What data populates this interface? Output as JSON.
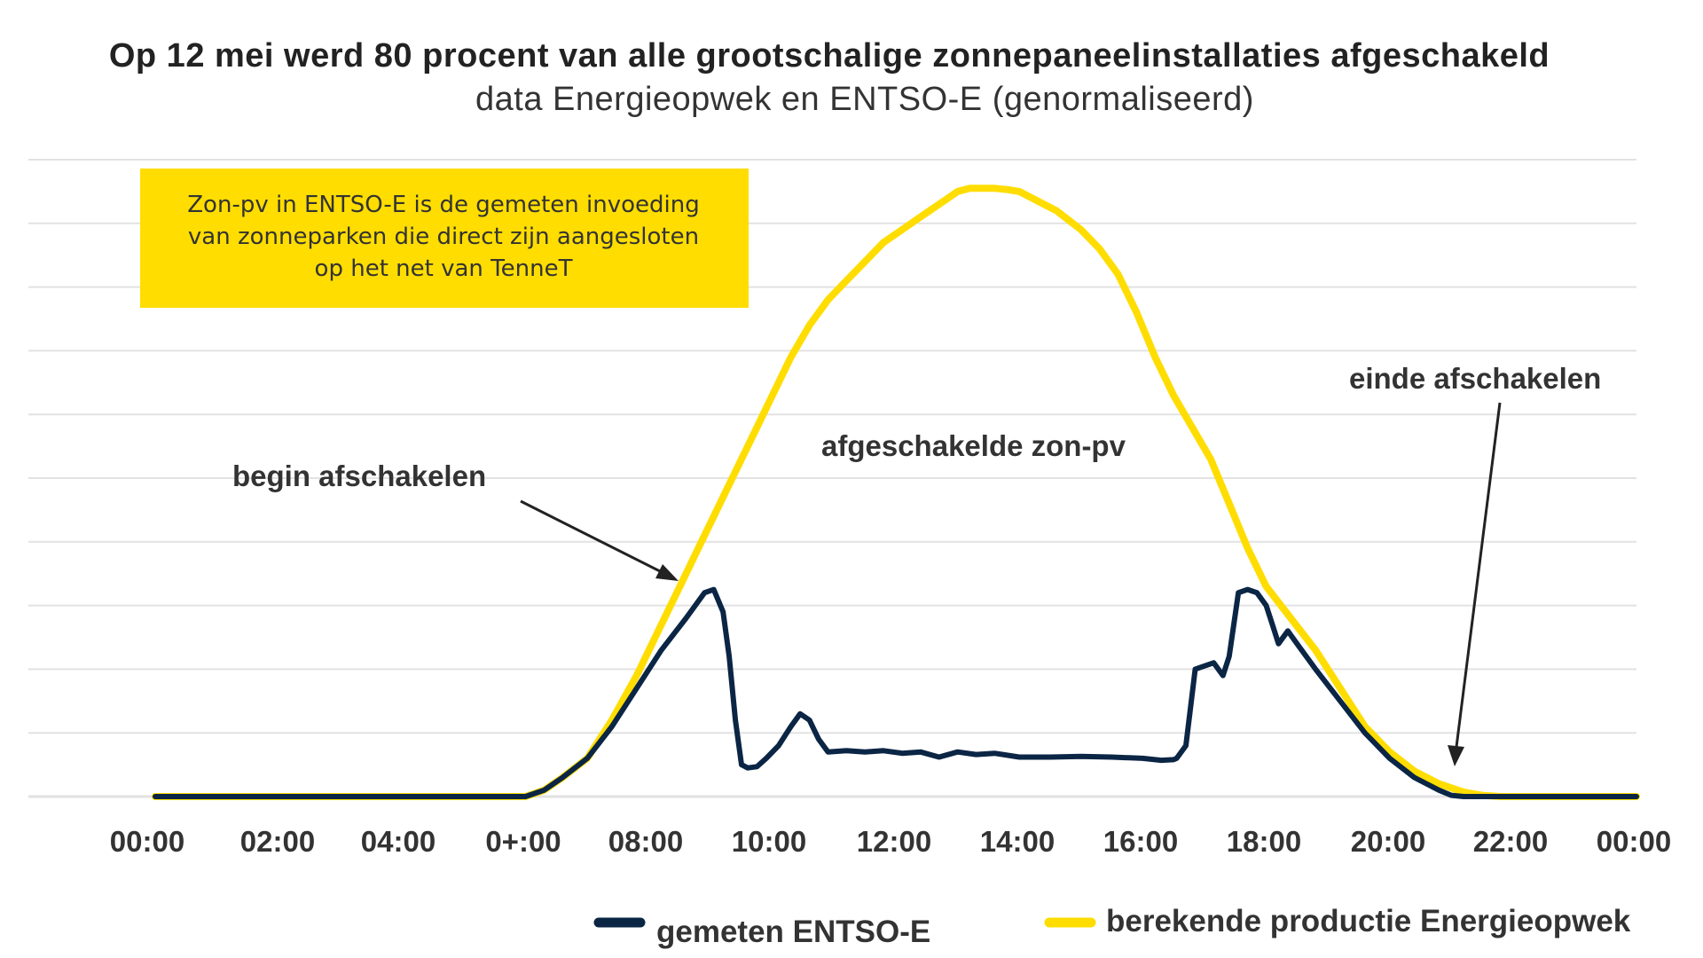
{
  "title": "Op 12 mei werd 80 procent van alle grootschalige zonnepaneelinstallaties afgeschakeld",
  "subtitle": "data Energieopwek en ENTSO-E (genormaliseerd)",
  "note": {
    "lines": [
      "Zon-pv in ENTSO-E is de gemeten invoeding",
      "van zonneparken die direct zijn aangesloten",
      "op het net van TenneT"
    ],
    "background": "#ffdd00"
  },
  "annotations": {
    "begin": "begin afschakelen",
    "middle": "afgeschakelde zon-pv",
    "end": "einde afschakelen"
  },
  "colors": {
    "entsoe": "#0b2545",
    "energieopwek": "#ffdd00",
    "grid": "#e2e2e2",
    "arrow": "#222222"
  },
  "chart_data": {
    "type": "line",
    "title": "Op 12 mei werd 80 procent van alle grootschalige zonnepaneelinstallaties afgeschakeld",
    "subtitle": "data Energieopwek en ENTSO-E (genormaliseerd)",
    "xlabel": "",
    "ylabel": "",
    "x_unit": "hours",
    "xlim": [
      0,
      24
    ],
    "ylim": [
      0,
      1
    ],
    "grid": true,
    "y_gridlines": 10,
    "legend_position": "bottom",
    "tick_labels": [
      "00:00",
      "02:00",
      "04:00",
      "0+:00",
      "08:00",
      "10:00",
      "12:00",
      "14:00",
      "16:00",
      "18:00",
      "20:00",
      "22:00",
      "00:00"
    ],
    "series": [
      {
        "name": "gemeten ENTSO-E",
        "color": "#0b2545",
        "x": [
          0,
          6.0,
          6.3,
          6.6,
          7.0,
          7.4,
          7.8,
          8.2,
          8.6,
          8.9,
          9.05,
          9.2,
          9.3,
          9.4,
          9.5,
          9.6,
          9.75,
          9.9,
          10.1,
          10.3,
          10.45,
          10.6,
          10.75,
          10.9,
          11.2,
          11.5,
          11.8,
          12.1,
          12.4,
          12.7,
          13.0,
          13.3,
          13.6,
          14.0,
          14.5,
          15.0,
          15.5,
          16.0,
          16.3,
          16.5,
          16.55,
          16.7,
          16.85,
          17.0,
          17.15,
          17.3,
          17.4,
          17.55,
          17.7,
          17.85,
          18.0,
          18.1,
          18.2,
          18.35,
          18.5,
          18.8,
          19.2,
          19.6,
          20.0,
          20.4,
          20.8,
          21.0,
          21.2,
          21.5,
          22.0,
          22.5,
          23.0,
          23.5,
          24.0
        ],
        "y": [
          0,
          0,
          0.01,
          0.03,
          0.06,
          0.11,
          0.17,
          0.23,
          0.28,
          0.32,
          0.325,
          0.29,
          0.22,
          0.12,
          0.05,
          0.045,
          0.047,
          0.06,
          0.08,
          0.11,
          0.13,
          0.12,
          0.09,
          0.07,
          0.072,
          0.07,
          0.072,
          0.068,
          0.07,
          0.062,
          0.07,
          0.066,
          0.068,
          0.062,
          0.062,
          0.063,
          0.062,
          0.06,
          0.057,
          0.058,
          0.06,
          0.08,
          0.2,
          0.205,
          0.21,
          0.19,
          0.22,
          0.32,
          0.325,
          0.32,
          0.3,
          0.27,
          0.24,
          0.26,
          0.24,
          0.2,
          0.15,
          0.1,
          0.06,
          0.03,
          0.01,
          0.002,
          0,
          0,
          0,
          0,
          0,
          0,
          0
        ]
      },
      {
        "name": "berekende productie Energieopwek",
        "color": "#ffdd00",
        "x": [
          0,
          6.0,
          6.3,
          6.6,
          7.0,
          7.4,
          7.8,
          8.2,
          8.5,
          8.8,
          9.1,
          9.4,
          9.7,
          10.0,
          10.3,
          10.6,
          10.9,
          11.2,
          11.5,
          11.8,
          12.1,
          12.4,
          12.7,
          13.0,
          13.2,
          13.4,
          13.6,
          13.8,
          14.0,
          14.2,
          14.4,
          14.6,
          14.8,
          15.0,
          15.3,
          15.6,
          15.9,
          16.2,
          16.5,
          16.8,
          17.1,
          17.4,
          17.7,
          18.0,
          18.4,
          18.8,
          19.2,
          19.6,
          20.0,
          20.4,
          20.8,
          21.2,
          21.5,
          21.8,
          22.0,
          22.5,
          23.0,
          23.5,
          24.0
        ],
        "y": [
          0,
          0,
          0.01,
          0.03,
          0.06,
          0.12,
          0.19,
          0.27,
          0.33,
          0.39,
          0.45,
          0.51,
          0.57,
          0.63,
          0.69,
          0.74,
          0.78,
          0.81,
          0.84,
          0.87,
          0.89,
          0.91,
          0.93,
          0.95,
          0.955,
          0.955,
          0.955,
          0.953,
          0.95,
          0.94,
          0.93,
          0.92,
          0.905,
          0.89,
          0.86,
          0.82,
          0.76,
          0.69,
          0.63,
          0.58,
          0.53,
          0.46,
          0.39,
          0.33,
          0.28,
          0.23,
          0.17,
          0.11,
          0.07,
          0.04,
          0.02,
          0.007,
          0.002,
          0,
          0,
          0,
          0,
          0,
          0
        ]
      }
    ]
  }
}
